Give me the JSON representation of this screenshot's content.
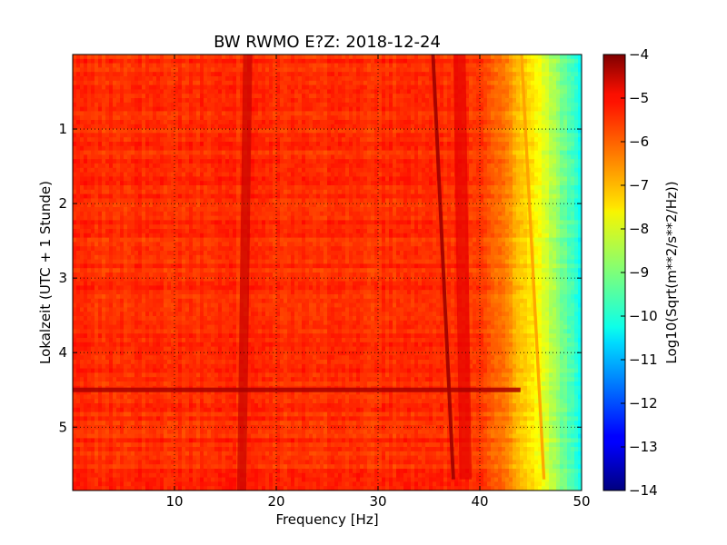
{
  "chart_data": {
    "type": "heatmap",
    "title": "BW RWMO E?Z: 2018-12-24",
    "xlabel": "Frequency [Hz]",
    "ylabel": "Lokalzeit (UTC + 1 Stunde)",
    "xlim": [
      0,
      50
    ],
    "ylim": [
      5.85,
      0.0
    ],
    "x_ticks": [
      10,
      20,
      30,
      40,
      50
    ],
    "y_ticks": [
      1,
      2,
      3,
      4,
      5
    ],
    "grid": true,
    "grid_style": "dotted",
    "colormap": "jet",
    "colorbar": {
      "label": "Log10(Sqrt(m**2/s**2/Hz))",
      "range": [
        -14,
        -4
      ],
      "ticks": [
        -4,
        -5,
        -6,
        -7,
        -8,
        -9,
        -10,
        -11,
        -12,
        -13,
        -14
      ]
    },
    "background_level": -5.7,
    "rolloff": {
      "start_hz": 38.5,
      "end_hz": 50,
      "end_level": -10.2
    },
    "features": [
      {
        "kind": "vertical-band",
        "freq_start": 17.2,
        "freq_end": 16.6,
        "time_start": 0.0,
        "time_end": 5.85,
        "level": -4.7,
        "width_hz": 0.9
      },
      {
        "kind": "drifting-line",
        "freq_start": 35.4,
        "freq_end": 37.4,
        "time_start": 0.0,
        "time_end": 5.7,
        "level": -4.3,
        "width_hz": 0.35
      },
      {
        "kind": "drifting-line",
        "freq_start": 44.1,
        "freq_end": 46.3,
        "time_start": 0.0,
        "time_end": 5.7,
        "level": -6.8,
        "width_hz": 0.3
      },
      {
        "kind": "vertical-band",
        "freq_start": 38.0,
        "freq_end": 38.6,
        "time_start": 0.0,
        "time_end": 5.7,
        "level": -5.0,
        "width_hz": 1.2
      },
      {
        "kind": "horizontal-line",
        "time": 4.5,
        "freq_start": 0,
        "freq_end": 44,
        "level": -4.4
      }
    ]
  }
}
